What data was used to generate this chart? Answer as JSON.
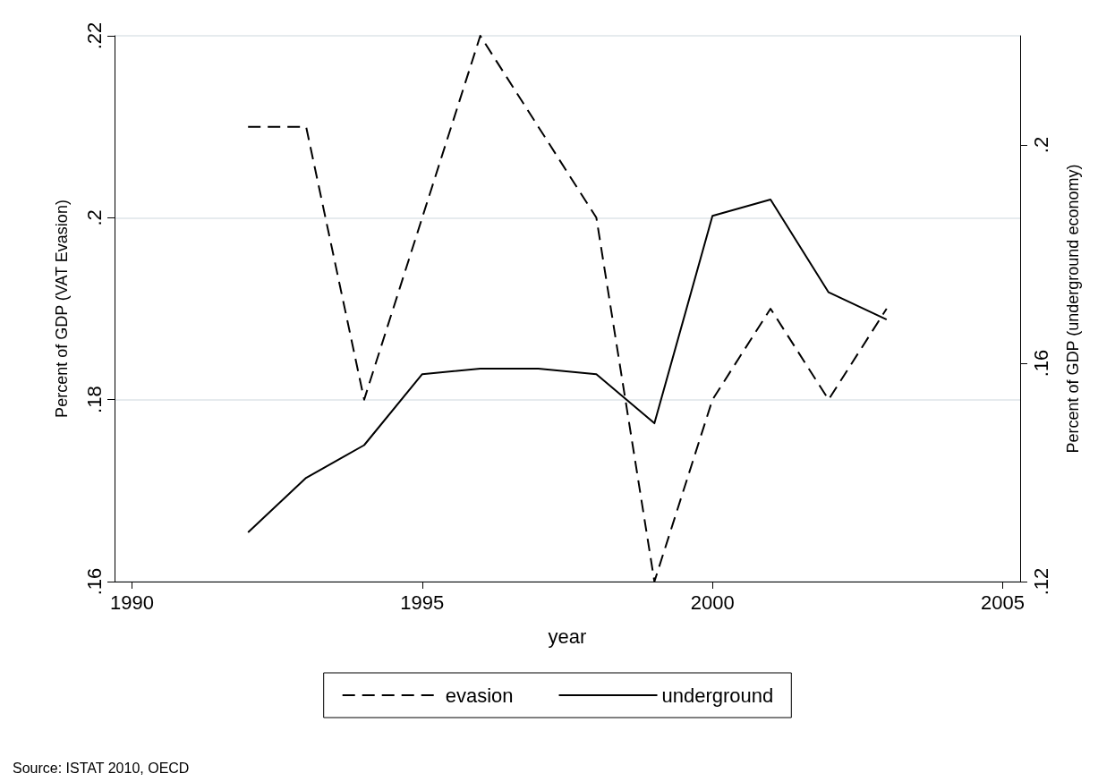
{
  "chart_data": {
    "type": "line",
    "xlabel": "year",
    "ylabel": "Percent of GDP (VAT Evasion)",
    "y2label": "Percent of GDP (underground economy)",
    "x": [
      1992,
      1993,
      1994,
      1995,
      1996,
      1997,
      1998,
      1999,
      2000,
      2001,
      2002,
      2003
    ],
    "series": [
      {
        "name": "evasion",
        "color": "#000000",
        "line_style": "dashed",
        "values": [
          0.21,
          0.21,
          0.18,
          0.2,
          0.22,
          0.21,
          0.2,
          0.16,
          0.18,
          0.19,
          0.18,
          0.19
        ]
      },
      {
        "name": "underground",
        "color": "#000000",
        "line_style": "solid",
        "axis": "y2",
        "values": [
          0.129,
          0.139,
          0.145,
          0.158,
          0.159,
          0.159,
          0.158,
          0.149,
          0.187,
          0.19,
          0.173,
          0.168
        ]
      }
    ],
    "xlim": [
      1989.7,
      2005.3
    ],
    "xticks": [
      1990,
      1995,
      2000,
      2005
    ],
    "ylim": [
      0.16,
      0.22
    ],
    "yticks": [
      {
        "value": 0.16,
        "label": ".16"
      },
      {
        "value": 0.18,
        "label": ".18"
      },
      {
        "value": 0.2,
        "label": ".2"
      },
      {
        "value": 0.22,
        "label": ".22"
      }
    ],
    "y2lim": [
      0.12,
      0.22
    ],
    "y2ticks": [
      {
        "value": 0.12,
        "label": ".12"
      },
      {
        "value": 0.16,
        "label": ".16"
      },
      {
        "value": 0.2,
        "label": ".2"
      }
    ],
    "grid": "y",
    "legend": "bottom",
    "marker": "none",
    "annotations": [
      "Source: ISTAT 2010, OECD"
    ]
  }
}
